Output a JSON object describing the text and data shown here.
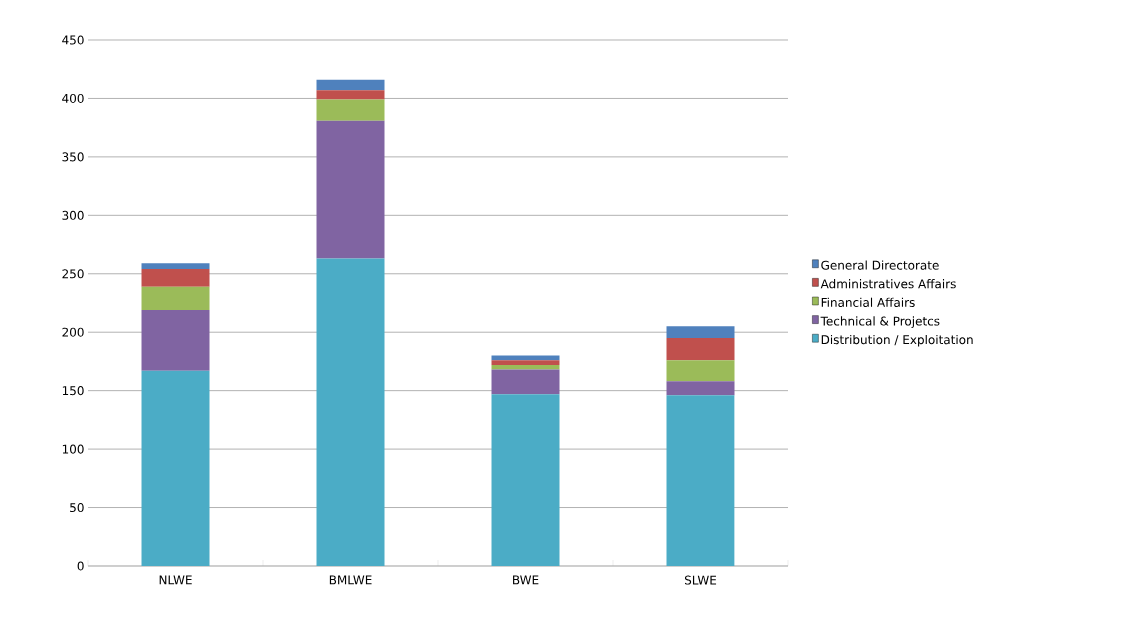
{
  "chart_data": {
    "type": "bar",
    "stacked": true,
    "categories": [
      "NLWE",
      "BMLWE",
      "BWE",
      "SLWE"
    ],
    "series": [
      {
        "name": "Distribution / Exploitation",
        "color": "#4bacc6",
        "values": [
          167,
          263,
          147,
          146
        ]
      },
      {
        "name": "Technical & Projetcs",
        "color": "#8064a2",
        "values": [
          52,
          118,
          21,
          12
        ]
      },
      {
        "name": "Financial Affairs",
        "color": "#9bbb59",
        "values": [
          20,
          18,
          4,
          18
        ]
      },
      {
        "name": "Administratives Affairs",
        "color": "#c0504d",
        "values": [
          15,
          8,
          4,
          19
        ]
      },
      {
        "name": "General Directorate",
        "color": "#4f81bd",
        "values": [
          5,
          9,
          4,
          10
        ]
      }
    ],
    "ylim": [
      0,
      450
    ],
    "yticks": [
      0,
      50,
      100,
      150,
      200,
      250,
      300,
      350,
      400,
      450
    ],
    "grid": "y",
    "legend": "right"
  }
}
